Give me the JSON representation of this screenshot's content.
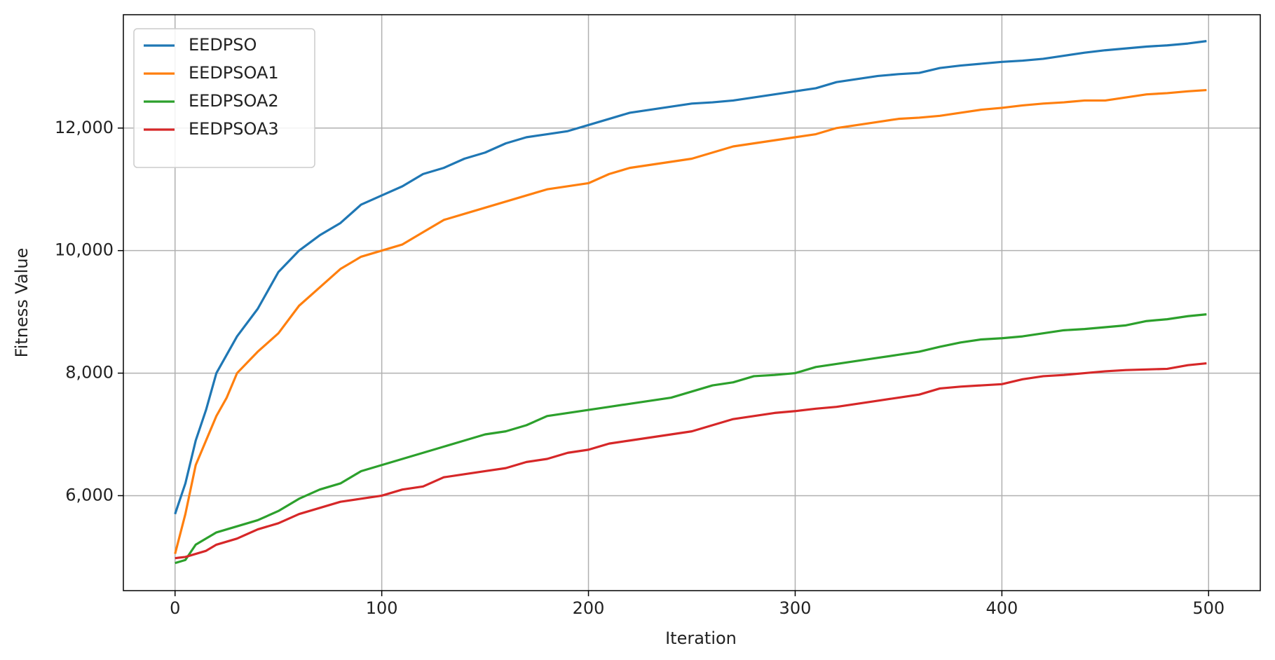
{
  "chart_data": {
    "type": "line",
    "xlabel": "Iteration",
    "ylabel": "Fitness Value",
    "x": [
      0,
      5,
      10,
      15,
      20,
      25,
      30,
      40,
      50,
      60,
      70,
      80,
      90,
      100,
      110,
      120,
      130,
      140,
      150,
      160,
      170,
      180,
      190,
      200,
      210,
      220,
      230,
      240,
      250,
      260,
      270,
      280,
      290,
      300,
      310,
      320,
      330,
      340,
      350,
      360,
      370,
      380,
      390,
      400,
      410,
      420,
      430,
      440,
      450,
      460,
      470,
      480,
      490,
      499
    ],
    "series": [
      {
        "name": "EEDPSO",
        "color": "#1f77b4",
        "values": [
          5700,
          6200,
          6900,
          7400,
          8000,
          8300,
          8600,
          9050,
          9650,
          10000,
          10250,
          10450,
          10750,
          10900,
          11050,
          11250,
          11350,
          11500,
          11600,
          11750,
          11850,
          11900,
          11950,
          12050,
          12150,
          12250,
          12300,
          12350,
          12400,
          12420,
          12450,
          12500,
          12550,
          12600,
          12650,
          12750,
          12800,
          12850,
          12880,
          12900,
          12980,
          13020,
          13050,
          13080,
          13100,
          13130,
          13180,
          13230,
          13270,
          13300,
          13330,
          13350,
          13380,
          13420
        ]
      },
      {
        "name": "EEDPSOA1",
        "color": "#ff7f0e",
        "values": [
          5050,
          5700,
          6500,
          6900,
          7300,
          7600,
          8000,
          8350,
          8650,
          9100,
          9400,
          9700,
          9900,
          10000,
          10100,
          10300,
          10500,
          10600,
          10700,
          10800,
          10900,
          11000,
          11050,
          11100,
          11250,
          11350,
          11400,
          11450,
          11500,
          11600,
          11700,
          11750,
          11800,
          11850,
          11900,
          12000,
          12050,
          12100,
          12150,
          12170,
          12200,
          12250,
          12300,
          12330,
          12370,
          12400,
          12420,
          12450,
          12450,
          12500,
          12550,
          12570,
          12600,
          12620
        ]
      },
      {
        "name": "EEDPSOA2",
        "color": "#2ca02c",
        "values": [
          4900,
          4950,
          5200,
          5300,
          5400,
          5450,
          5500,
          5600,
          5750,
          5950,
          6100,
          6200,
          6400,
          6500,
          6600,
          6700,
          6800,
          6900,
          7000,
          7050,
          7150,
          7300,
          7350,
          7400,
          7450,
          7500,
          7550,
          7600,
          7700,
          7800,
          7850,
          7950,
          7970,
          8000,
          8100,
          8150,
          8200,
          8250,
          8300,
          8350,
          8430,
          8500,
          8550,
          8570,
          8600,
          8650,
          8700,
          8720,
          8750,
          8780,
          8850,
          8880,
          8930,
          8960
        ]
      },
      {
        "name": "EEDPSOA3",
        "color": "#d62728",
        "values": [
          4980,
          5000,
          5050,
          5100,
          5200,
          5250,
          5300,
          5450,
          5550,
          5700,
          5800,
          5900,
          5950,
          6000,
          6100,
          6150,
          6300,
          6350,
          6400,
          6450,
          6550,
          6600,
          6700,
          6750,
          6850,
          6900,
          6950,
          7000,
          7050,
          7150,
          7250,
          7300,
          7350,
          7380,
          7420,
          7450,
          7500,
          7550,
          7600,
          7650,
          7750,
          7780,
          7800,
          7820,
          7900,
          7950,
          7970,
          8000,
          8030,
          8050,
          8060,
          8070,
          8130,
          8160
        ]
      }
    ],
    "xlim": [
      -25,
      525
    ],
    "ylim": [
      4450,
      13850
    ],
    "xticks": [
      0,
      100,
      200,
      300,
      400,
      500
    ],
    "yticks": [
      {
        "value": 6000,
        "label": "6,000"
      },
      {
        "value": 8000,
        "label": "8,000"
      },
      {
        "value": 10000,
        "label": "10,000"
      },
      {
        "value": 12000,
        "label": "12,000"
      }
    ],
    "grid": true,
    "legend": "upper left"
  }
}
